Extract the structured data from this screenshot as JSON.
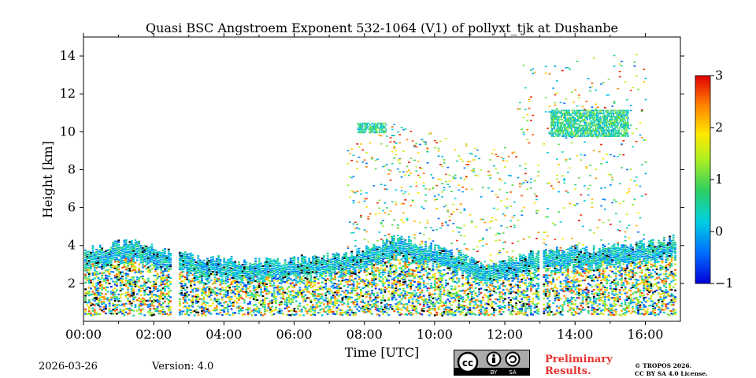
{
  "chart_data": {
    "type": "heatmap",
    "title": "Quasi BSC Angstroem Exponent 532-1064 (V1) of pollyxt_tjk at Dushanbe",
    "xlabel": "Time [UTC]",
    "ylabel": "Height [km]",
    "xlim_hours": [
      0,
      17
    ],
    "ylim_km": [
      0,
      15
    ],
    "x_ticks": [
      "00:00",
      "02:00",
      "04:00",
      "06:00",
      "08:00",
      "10:00",
      "12:00",
      "14:00",
      "16:00"
    ],
    "x_tick_hours": [
      0,
      2,
      4,
      6,
      8,
      10,
      12,
      14,
      16
    ],
    "y_ticks": [
      2,
      4,
      6,
      8,
      10,
      12,
      14
    ],
    "colorbar": {
      "min": -1,
      "max": 3,
      "ticks": [
        -1,
        0,
        1,
        2,
        3
      ],
      "tick_labels": [
        "−1",
        "0",
        "1",
        "2",
        "3"
      ],
      "colormap": "jet"
    },
    "data_gaps_hours": [
      [
        2.5,
        2.7
      ],
      [
        12.95,
        13.05
      ]
    ],
    "aerosol_layer_top_km": {
      "hours": [
        0,
        0.8,
        1.3,
        2.5,
        3.5,
        5,
        7.5,
        9,
        10.5,
        11.5,
        12.5,
        13,
        14,
        15.5,
        16.8
      ],
      "km": [
        3.7,
        4.0,
        4.3,
        3.6,
        3.3,
        3.1,
        3.5,
        4.4,
        3.6,
        2.8,
        3.4,
        3.7,
        3.8,
        3.9,
        4.4
      ]
    },
    "cloud_layers": [
      {
        "hours": [
          7.8,
          8.6
        ],
        "km": [
          10.0,
          10.5
        ]
      },
      {
        "hours": [
          13.3,
          15.5
        ],
        "km": [
          9.8,
          11.2
        ]
      }
    ]
  },
  "footer": {
    "date": "2026-03-26",
    "version": "Version: 4.0",
    "preliminary": [
      "Preliminary",
      "Results."
    ],
    "copyright": [
      "© TROPOS 2026.",
      "CC BY SA 4.0 License."
    ],
    "license_badge": [
      "cc",
      "BY",
      "SA"
    ]
  }
}
